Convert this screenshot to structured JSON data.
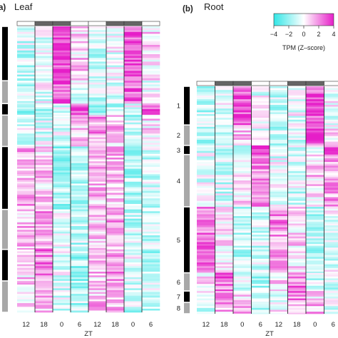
{
  "panels": {
    "a": {
      "letter": "a)",
      "title": "Leaf"
    },
    "b": {
      "letter": "(b)",
      "title": "Root"
    }
  },
  "legend": {
    "label": "TPM (Z–score)",
    "ticks": [
      "−4",
      "−2",
      "0",
      "2",
      "4"
    ],
    "range": [
      -4,
      4
    ],
    "colors": {
      "low": "#33e6e6",
      "mid": "#ffffff",
      "high": "#e61ec8"
    }
  },
  "chart_data": [
    {
      "type": "heatmap",
      "title": "Leaf",
      "xlabel": "ZT",
      "x_ticks": [
        "12",
        "18",
        "0",
        "6",
        "12",
        "18",
        "0",
        "6"
      ],
      "light_dark_bar": [
        "light",
        "dark",
        "dark",
        "light",
        "light",
        "dark",
        "dark",
        "light"
      ],
      "cluster_labels": [
        "",
        "",
        "",
        "",
        "",
        "",
        "",
        ""
      ],
      "cluster_profiles": [
        [
          -0.8,
          -0.3,
          2.6,
          0.6,
          -0.8,
          -0.2,
          2.4,
          0.4
        ],
        [
          -0.9,
          -0.3,
          2.2,
          -0.2,
          -0.8,
          -0.3,
          2.0,
          -0.3
        ],
        [
          -1.4,
          -1.2,
          -0.6,
          2.4,
          -1.3,
          -1.0,
          -0.4,
          2.2
        ],
        [
          -0.3,
          -0.5,
          -0.6,
          0.6,
          1.4,
          0.8,
          -0.9,
          0.4
        ],
        [
          1.1,
          0.7,
          -1.2,
          -0.8,
          0.9,
          0.8,
          -1.1,
          -0.6
        ],
        [
          0.9,
          1.2,
          -0.6,
          -1.0,
          0.7,
          1.2,
          -0.8,
          -0.8
        ],
        [
          0.5,
          1.6,
          -0.4,
          -1.3,
          0.6,
          1.5,
          -0.5,
          -1.1
        ],
        [
          0.6,
          1.0,
          -0.7,
          -1.0,
          0.8,
          1.1,
          -0.9,
          -0.7
        ]
      ]
    },
    {
      "type": "heatmap",
      "title": "Root",
      "xlabel": "ZT",
      "x_ticks": [
        "12",
        "18",
        "0",
        "6",
        "12",
        "18",
        "0",
        "6"
      ],
      "light_dark_bar": [
        "light",
        "dark",
        "dark",
        "light",
        "light",
        "dark",
        "dark",
        "light"
      ],
      "cluster_labels": [
        "1",
        "2",
        "3",
        "4",
        "5",
        "6",
        "7",
        "8"
      ],
      "cluster_profiles": [
        [
          -0.9,
          -0.4,
          2.4,
          -0.3,
          -0.8,
          -0.3,
          2.3,
          -0.2
        ],
        [
          -1.0,
          -0.7,
          0.6,
          -0.3,
          -0.9,
          -0.6,
          2.4,
          0.4
        ],
        [
          -0.6,
          -0.8,
          -0.4,
          2.2,
          -0.6,
          -0.7,
          -0.4,
          2.0
        ],
        [
          -0.3,
          -0.6,
          0.4,
          1.5,
          -0.4,
          -0.6,
          0.6,
          1.2
        ],
        [
          1.6,
          0.4,
          -0.9,
          -0.6,
          1.4,
          0.4,
          -0.9,
          -0.4
        ],
        [
          0.2,
          1.8,
          -0.5,
          -1.0,
          0.3,
          1.6,
          -0.6,
          -0.8
        ],
        [
          -0.4,
          1.2,
          0.4,
          -0.6,
          -0.2,
          1.4,
          0.2,
          -0.6
        ],
        [
          -0.6,
          1.0,
          0.8,
          -1.0,
          0.0,
          0.8,
          1.0,
          -0.4
        ]
      ]
    }
  ]
}
